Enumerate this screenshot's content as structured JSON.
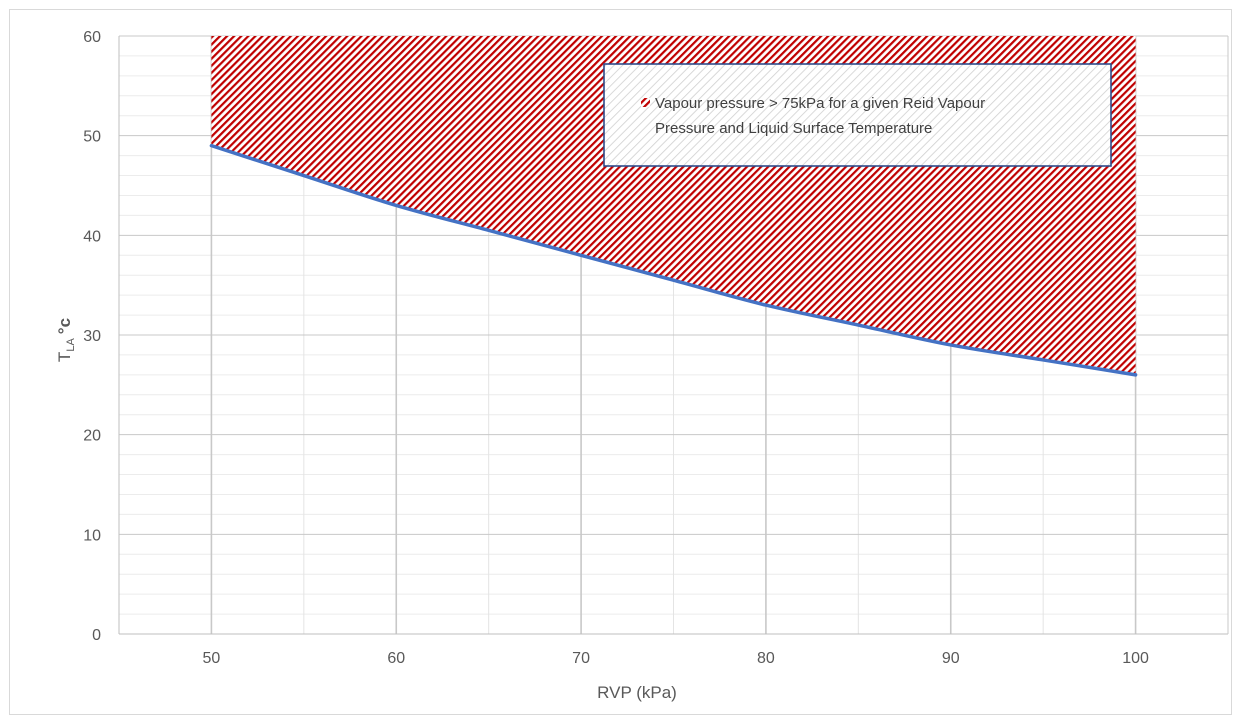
{
  "chart_data": {
    "type": "line",
    "title": "",
    "xlabel": "RVP (kPa)",
    "ylabel_main": "T",
    "ylabel_sub": "LA",
    "ylabel_unit": "°c",
    "xlim": [
      45,
      105
    ],
    "ylim": [
      0,
      60
    ],
    "x_ticks": [
      50,
      60,
      70,
      80,
      90,
      100
    ],
    "y_ticks": [
      0,
      10,
      20,
      30,
      40,
      50,
      60
    ],
    "x_minor_step": 5,
    "y_minor_step": 2,
    "grid": true,
    "series": [
      {
        "x": [
          50,
          55,
          60,
          65,
          70,
          75,
          80,
          85,
          90,
          95,
          100
        ],
        "y": [
          49,
          46,
          43,
          40.5,
          38,
          35.5,
          33,
          31,
          29,
          27.5,
          26
        ],
        "color": "#4472c4"
      }
    ],
    "shaded_region": {
      "label": "Vapour pressure > 75kPa for a given Reid Vapour Pressure and Liquid Surface Temperature",
      "label_lines": [
        "Vapour pressure > 75kPa for a given Reid Vapour",
        "Pressure and Liquid Surface Temperature"
      ],
      "x_range": [
        50,
        100
      ],
      "y_top": 60,
      "pattern_color": "#c00000"
    },
    "legend_position": "top-right"
  }
}
